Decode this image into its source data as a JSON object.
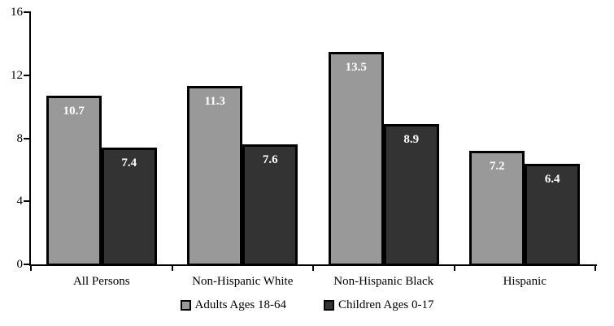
{
  "chart_data": {
    "type": "bar",
    "title": "",
    "xlabel": "",
    "ylabel": "",
    "categories": [
      "All Persons",
      "Non-Hispanic White",
      "Non-Hispanic Black",
      "Hispanic"
    ],
    "series": [
      {
        "name": "Adults Ages 18-64",
        "color": "#999999",
        "values": [
          10.7,
          11.3,
          13.5,
          7.2
        ]
      },
      {
        "name": "Children Ages 0-17",
        "color": "#333333",
        "values": [
          7.4,
          7.6,
          8.9,
          6.4
        ]
      }
    ],
    "ylim": [
      0,
      16
    ],
    "yticks": [
      0,
      4,
      8,
      12,
      16
    ],
    "grid": false,
    "legend_position": "bottom",
    "value_label_color": "#ffffff",
    "bar_border_color": "#000000",
    "axis_color": "#000000"
  }
}
